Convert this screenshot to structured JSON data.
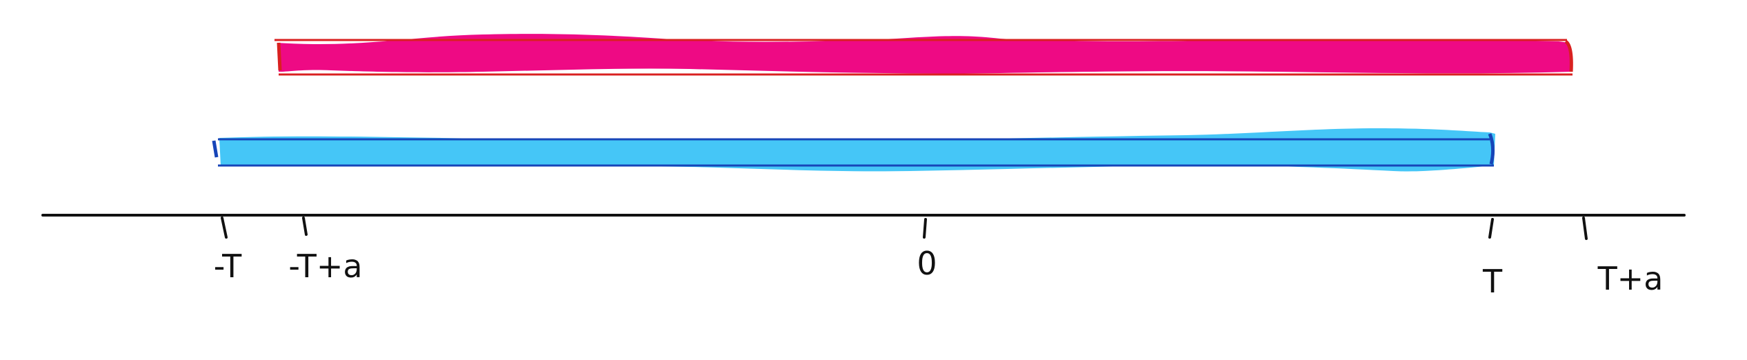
{
  "diagram": {
    "colors": {
      "upper_bar_fill": "#EE0A84",
      "upper_bar_outline": "#D92020",
      "lower_bar_fill": "#45C6F7",
      "lower_bar_outline": "#1745B8",
      "axis": "#111111",
      "ink": "#111111"
    },
    "axis": {
      "ticks": [
        {
          "id": "neg-t",
          "label": "-T"
        },
        {
          "id": "neg-t-plus-a",
          "label": "-T+a"
        },
        {
          "id": "zero",
          "label": "0"
        },
        {
          "id": "t",
          "label": "T"
        },
        {
          "id": "t-plus-a",
          "label": "T+a"
        }
      ]
    },
    "intervals": [
      {
        "id": "shifted-window",
        "from": "-T+a",
        "to": "T+a",
        "color_key": "upper_bar_fill"
      },
      {
        "id": "base-window",
        "from": "-T",
        "to": "T",
        "color_key": "lower_bar_fill"
      }
    ]
  }
}
